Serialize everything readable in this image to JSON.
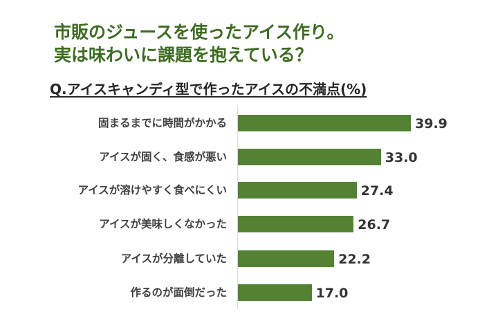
{
  "title": {
    "line1": "市販のジュースを使ったアイス作り。",
    "line2": "実は味わいに課題を抱えている？"
  },
  "subtitle": "Q.アイスキャンディ型で作ったアイスの不満点(%)",
  "colors": {
    "title": "#3e6b23",
    "bar": "#548235",
    "label": "#404040",
    "value": "#333333"
  },
  "chart_data": {
    "type": "bar",
    "orientation": "horizontal",
    "title": "Q.アイスキャンディ型で作ったアイスの不満点(%)",
    "xlabel": "",
    "ylabel": "",
    "unit": "%",
    "categories": [
      "固まるまでに時間がかかる",
      "アイスが固く、食感が悪い",
      "アイスが溶けやすく食べにくい",
      "アイスが美味しくなかった",
      "アイスが分離していた",
      "作るのが面倒だった"
    ],
    "values": [
      39.9,
      33.0,
      27.4,
      26.7,
      22.2,
      17.0
    ],
    "value_labels": [
      "39.9",
      "33.0",
      "27.4",
      "26.7",
      "22.2",
      "17.0"
    ],
    "grid": false,
    "legend": null,
    "xlim": [
      0,
      40
    ]
  }
}
